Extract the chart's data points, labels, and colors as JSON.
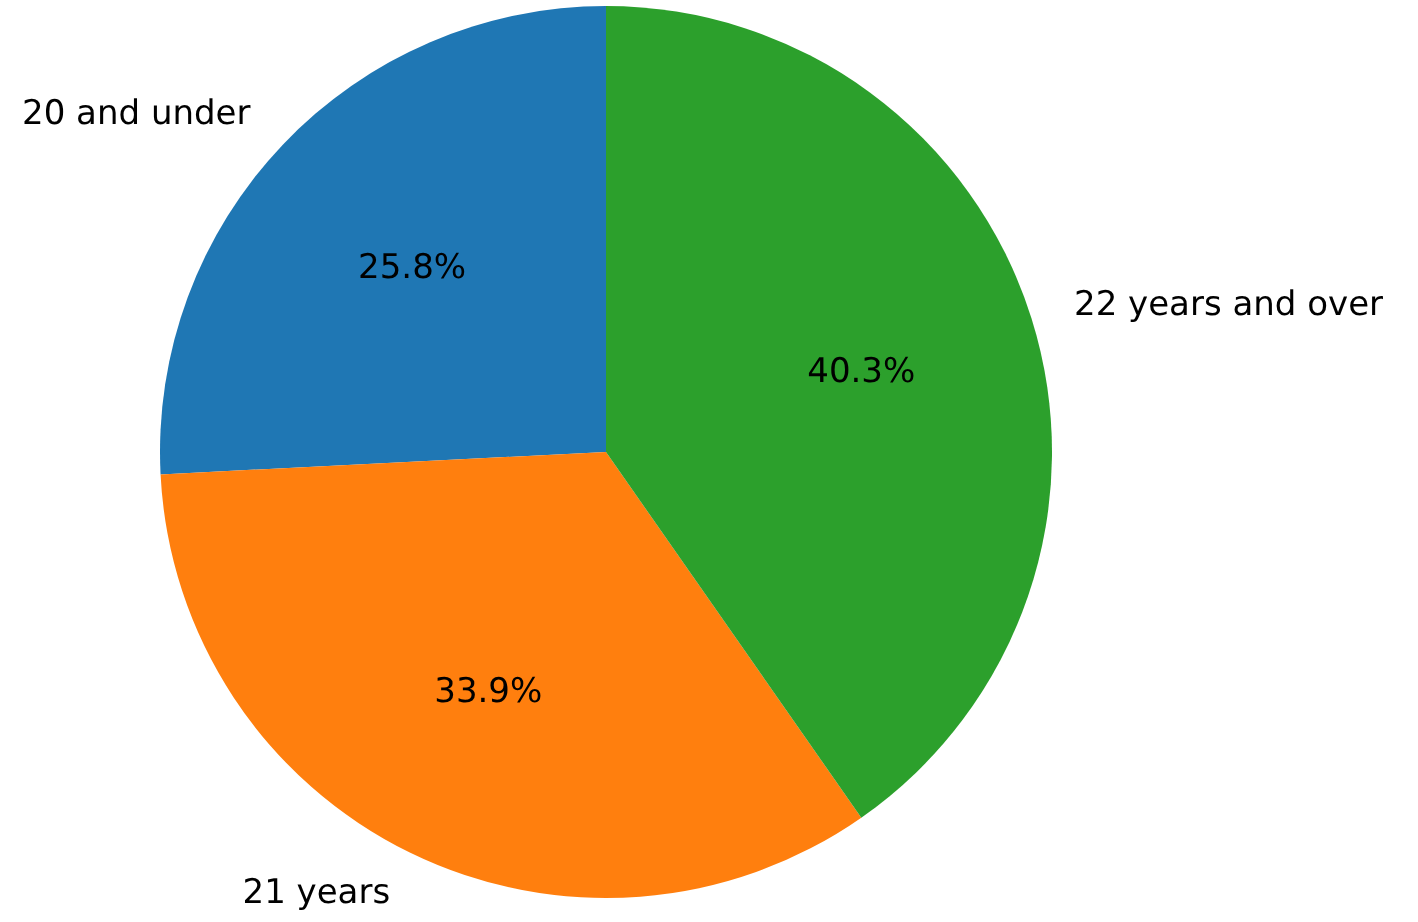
{
  "chart_data": {
    "type": "pie",
    "categories": [
      "20 and under",
      "21 years",
      "22 years and over"
    ],
    "values": [
      25.8,
      33.9,
      40.3
    ],
    "colors": [
      "#1f77b4",
      "#ff7f0e",
      "#2ca02c"
    ],
    "value_labels": [
      "25.8%",
      "33.9%",
      "40.3%"
    ]
  }
}
